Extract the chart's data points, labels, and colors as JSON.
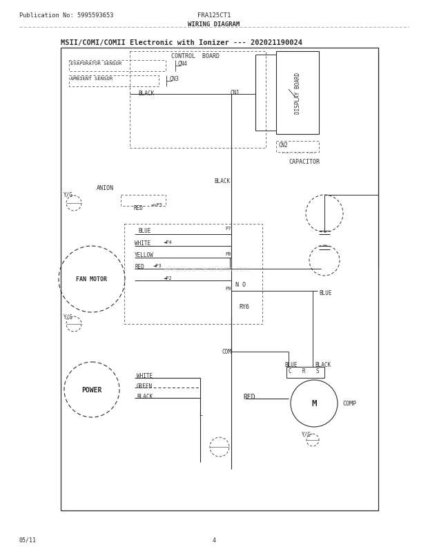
{
  "title": "MSII/COMI/COMII Electronic with Ionizer --- 202021190024",
  "header_left": "Publication No: 5995593653",
  "header_center": "FRA125CT1",
  "header_sub": "WIRING DIAGRAM",
  "footer_left": "05/11",
  "footer_center": "4",
  "bg_color": "#ffffff",
  "text_color": "#2a2a2a",
  "watermark": "eReplacementParts.com"
}
